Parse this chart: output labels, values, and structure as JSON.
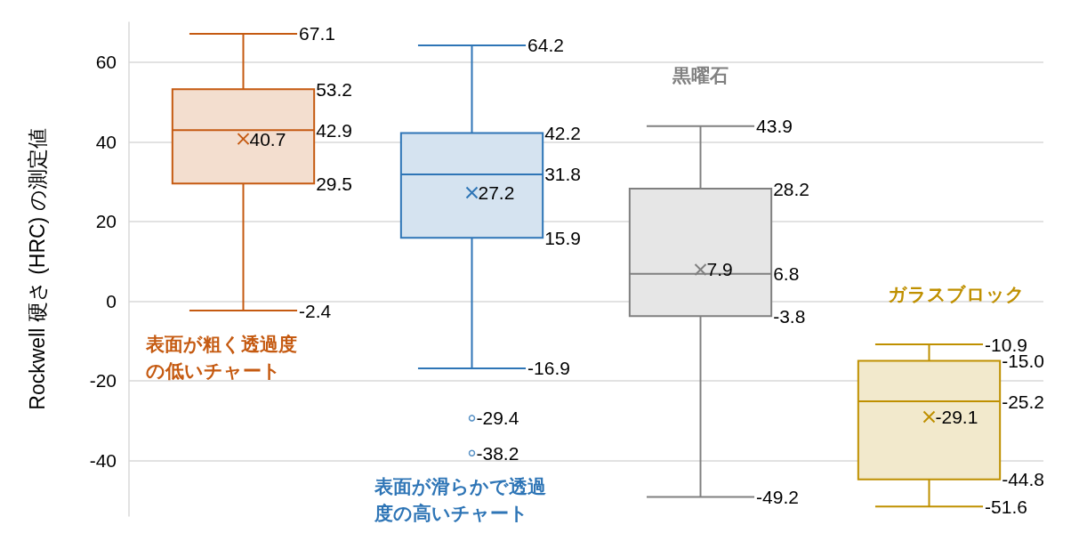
{
  "chart_data": {
    "type": "box",
    "ylabel": "Rockwell 硬さ (HRC) の測定値",
    "categories": [
      null,
      null,
      null,
      null
    ],
    "ylim": [
      -54,
      70
    ],
    "yticks": [
      -40,
      -20,
      0,
      20,
      40,
      60
    ],
    "grid": "y",
    "series": [
      {
        "name": "表面が粗く透過度の低いチャート",
        "color": "#c55a11",
        "boxes": [
          {
            "low": -2.4,
            "q1": 29.5,
            "median": 42.9,
            "q3": 53.2,
            "high": 67.1,
            "mean": 40.7
          },
          null,
          null,
          null
        ]
      },
      {
        "name": "表面が滑らかで透過度の高いチャート",
        "color": "#2e75b6",
        "boxes": [
          null,
          {
            "low": -16.9,
            "q1": 15.9,
            "median": 31.8,
            "q3": 42.2,
            "high": 64.2,
            "mean": 27.2,
            "outliers": [
              -29.4,
              -38.2
            ]
          },
          null,
          null
        ]
      },
      {
        "name": "黒曜石",
        "color": "#808080",
        "boxes": [
          null,
          null,
          {
            "low": -49.2,
            "q1": -3.8,
            "median": 6.8,
            "q3": 28.2,
            "high": 43.9,
            "mean": 7.9
          },
          null
        ]
      },
      {
        "name": "ガラスブロック",
        "color": "#bf9000",
        "boxes": [
          null,
          null,
          null,
          {
            "low": -51.6,
            "q1": -44.8,
            "median": -25.2,
            "q3": -15.0,
            "high": -10.9,
            "mean": -29.1
          }
        ]
      }
    ],
    "annotations": [
      "67.1",
      "53.2",
      "42.9",
      "40.7",
      "29.5",
      "-2.4",
      "64.2",
      "42.2",
      "31.8",
      "27.2",
      "15.9",
      "-16.9",
      "-29.4",
      "-38.2",
      "43.9",
      "28.2",
      "6.8",
      "7.9",
      "-3.8",
      "-49.2",
      "-10.9",
      "-15.0",
      "-25.2",
      "-29.1",
      "-44.8",
      "-51.6"
    ]
  }
}
